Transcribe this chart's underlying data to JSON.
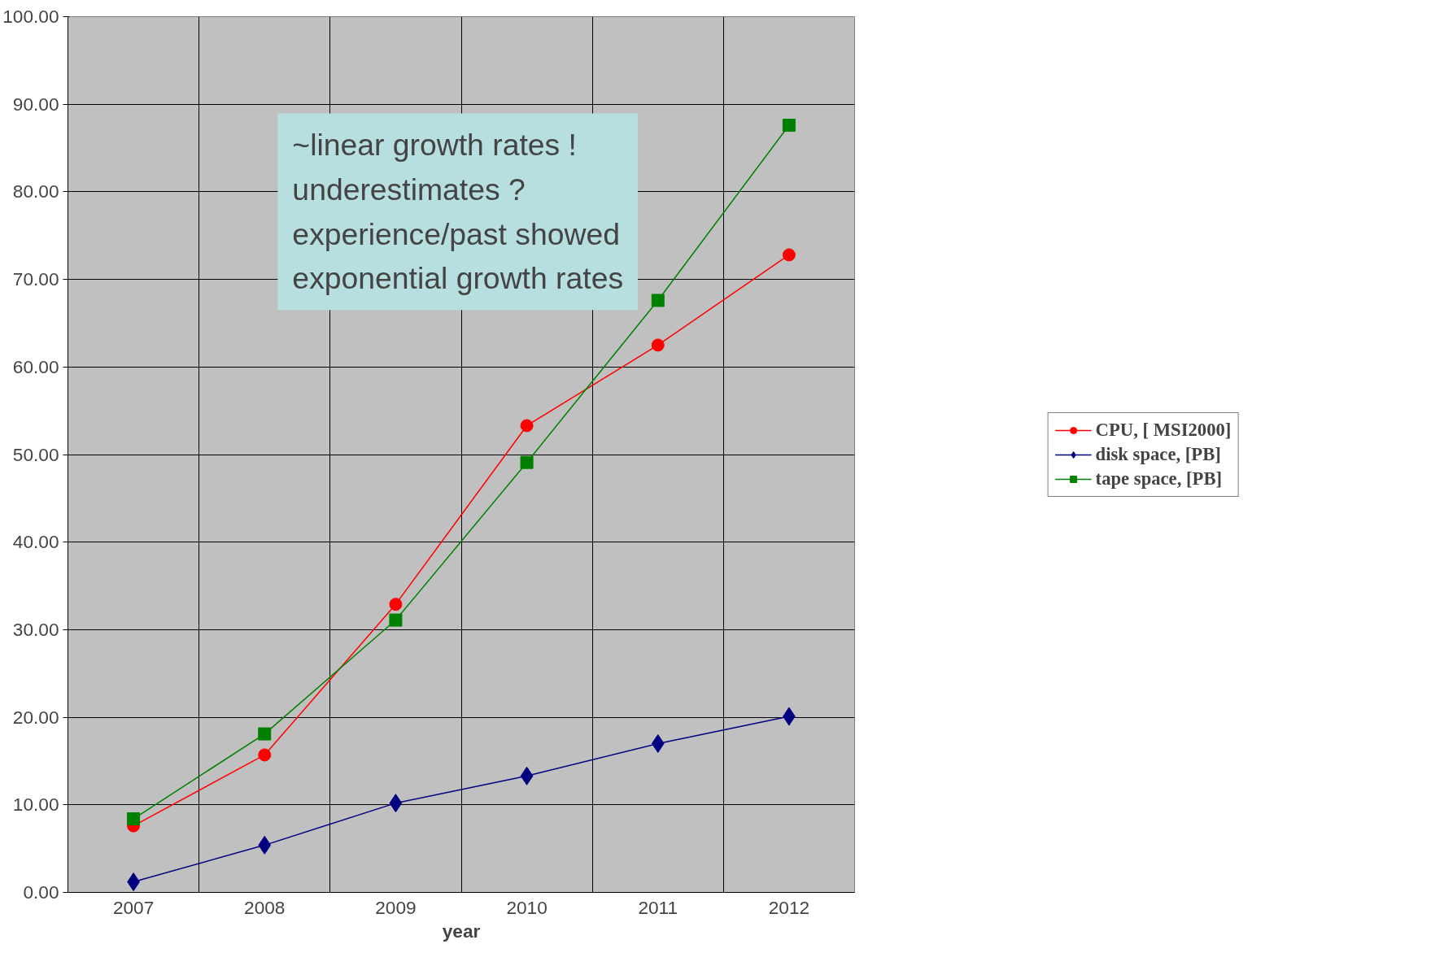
{
  "chart_data": {
    "type": "line",
    "xlabel": "year",
    "categories": [
      "2007",
      "2008",
      "2009",
      "2010",
      "2011",
      "2012"
    ],
    "series": [
      {
        "name": "CPU, [ MSI2000]",
        "color": "#ff0000",
        "marker": "circle",
        "values": [
          7.6,
          15.7,
          32.9,
          53.3,
          62.5,
          72.8
        ]
      },
      {
        "name": "disk space, [PB]",
        "color": "#000080",
        "marker": "diamond",
        "values": [
          1.2,
          5.4,
          10.2,
          13.3,
          17.0,
          20.1
        ]
      },
      {
        "name": "tape space, [PB]",
        "color": "#008000",
        "marker": "square",
        "values": [
          8.4,
          18.1,
          31.1,
          49.1,
          67.6,
          87.6
        ]
      }
    ],
    "ylim": [
      0,
      100
    ],
    "yticks": [
      {
        "value": 0,
        "label": "0.00"
      },
      {
        "value": 10,
        "label": "10.00"
      },
      {
        "value": 20,
        "label": "20.00"
      },
      {
        "value": 30,
        "label": "30.00"
      },
      {
        "value": 40,
        "label": "40.00"
      },
      {
        "value": 50,
        "label": "50.00"
      },
      {
        "value": 60,
        "label": "60.00"
      },
      {
        "value": 70,
        "label": "70.00"
      },
      {
        "value": 80,
        "label": "80.00"
      },
      {
        "value": 90,
        "label": "90.00"
      },
      {
        "value": 100,
        "label": "100.00"
      }
    ],
    "grid": true,
    "legend": "right",
    "annotations": [
      "~linear growth rates !\n    underestimates ?\nexperience/past showed\nexponential growth rates"
    ]
  }
}
